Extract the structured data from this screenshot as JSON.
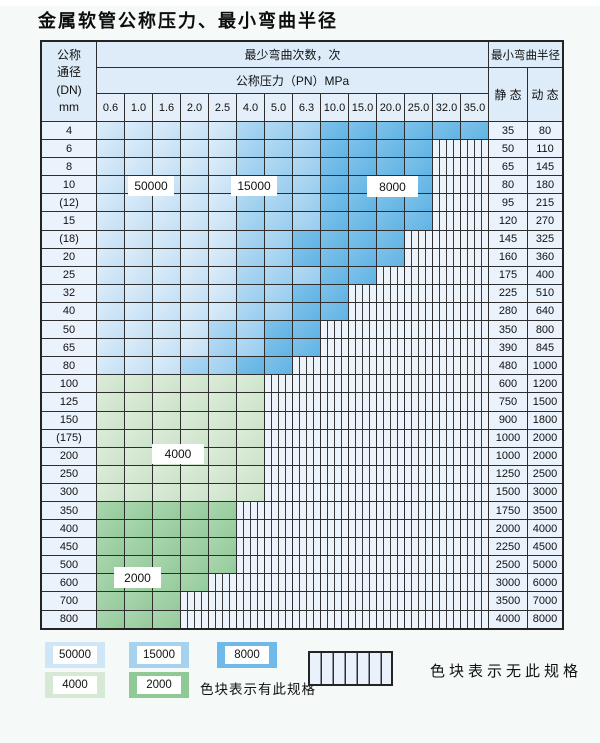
{
  "title": "金属软管公称压力、最小弯曲半径",
  "table": {
    "header": {
      "dn_lines": [
        "公称",
        "通径",
        "(DN)",
        "mm"
      ],
      "bend_cycles": "最少弯曲次数，次",
      "pressure_title": "公称压力（PN）MPa",
      "radius_title": "最小弯曲半径",
      "static_label": "静 态",
      "dynamic_label": "动 态",
      "pressures": [
        "0.6",
        "1.0",
        "1.6",
        "2.0",
        "2.5",
        "4.0",
        "5.0",
        "6.3",
        "10.0",
        "15.0",
        "20.0",
        "25.0",
        "32.0",
        "35.0"
      ]
    },
    "shade_legend_key": {
      "L": "50000 cycles",
      "M": "15000 cycles",
      "D": "8000 cycles",
      "G": "4000 cycles",
      "H": "2000 cycles",
      "S": "no specification"
    },
    "rows": [
      {
        "dn": "4",
        "static": "35",
        "dynamic": "80",
        "cells": "LLLLLMMMDDDDDD"
      },
      {
        "dn": "6",
        "static": "50",
        "dynamic": "110",
        "cells": "LLLLLMMMDDDDSS"
      },
      {
        "dn": "8",
        "static": "65",
        "dynamic": "145",
        "cells": "LLLLLMMMDDDDSS"
      },
      {
        "dn": "10",
        "static": "80",
        "dynamic": "180",
        "cells": "LLLLLMMMDDDDSS"
      },
      {
        "dn": "(12)",
        "static": "95",
        "dynamic": "215",
        "cells": "LLLLLMMMDDDDSS"
      },
      {
        "dn": "15",
        "static": "120",
        "dynamic": "270",
        "cells": "LLLLLMMMDDDDSS"
      },
      {
        "dn": "(18)",
        "static": "145",
        "dynamic": "325",
        "cells": "LLLLLMMDDDDSSS"
      },
      {
        "dn": "20",
        "static": "160",
        "dynamic": "360",
        "cells": "LLLLLMMDDDDSSS"
      },
      {
        "dn": "25",
        "static": "175",
        "dynamic": "400",
        "cells": "LLLLLMMMDDSSSS"
      },
      {
        "dn": "32",
        "static": "225",
        "dynamic": "510",
        "cells": "LLLLLMMDDSSSSS"
      },
      {
        "dn": "40",
        "static": "280",
        "dynamic": "640",
        "cells": "LLLLLMMDDSSSSS"
      },
      {
        "dn": "50",
        "static": "350",
        "dynamic": "800",
        "cells": "LLLLMMDDSSSSSS"
      },
      {
        "dn": "65",
        "static": "390",
        "dynamic": "845",
        "cells": "LLLLMMDDSSSSSS"
      },
      {
        "dn": "80",
        "static": "480",
        "dynamic": "1000",
        "cells": "LLLMMDDSSSSSSS"
      },
      {
        "dn": "100",
        "static": "600",
        "dynamic": "1200",
        "cells": "GGGGGGSSSSSSSS"
      },
      {
        "dn": "125",
        "static": "750",
        "dynamic": "1500",
        "cells": "GGGGGGSSSSSSSS"
      },
      {
        "dn": "150",
        "static": "900",
        "dynamic": "1800",
        "cells": "GGGGGGSSSSSSSS"
      },
      {
        "dn": "(175)",
        "static": "1000",
        "dynamic": "2000",
        "cells": "GGGGGGSSSSSSSS"
      },
      {
        "dn": "200",
        "static": "1000",
        "dynamic": "2000",
        "cells": "GGGGGGSSSSSSSS"
      },
      {
        "dn": "250",
        "static": "1250",
        "dynamic": "2500",
        "cells": "GGGGGGSSSSSSSS"
      },
      {
        "dn": "300",
        "static": "1500",
        "dynamic": "3000",
        "cells": "GGGGGGSSSSSSSS"
      },
      {
        "dn": "350",
        "static": "1750",
        "dynamic": "3500",
        "cells": "HHHHHSSSSSSSSS"
      },
      {
        "dn": "400",
        "static": "2000",
        "dynamic": "4000",
        "cells": "HHHHHSSSSSSSSS"
      },
      {
        "dn": "450",
        "static": "2250",
        "dynamic": "4500",
        "cells": "HHHHHSSSSSSSSS"
      },
      {
        "dn": "500",
        "static": "2500",
        "dynamic": "5000",
        "cells": "HHHHHSSSSSSSSS"
      },
      {
        "dn": "600",
        "static": "3000",
        "dynamic": "6000",
        "cells": "HHHHSSSSSSSSSS"
      },
      {
        "dn": "700",
        "static": "3500",
        "dynamic": "7000",
        "cells": "HHHSSSSSSSSSSS"
      },
      {
        "dn": "800",
        "static": "4000",
        "dynamic": "8000",
        "cells": "HHHSSSSSSSSSSS"
      }
    ]
  },
  "zone_labels": {
    "z50000": "50000",
    "z15000": "15000",
    "z8000": "8000",
    "z4000": "4000",
    "z2000": "2000"
  },
  "legend": {
    "b50000": "50000",
    "b15000": "15000",
    "b8000": "8000",
    "b4000": "4000",
    "b2000": "2000",
    "has_spec": "色块表示有此规格",
    "no_spec": "色块表示无此规格"
  },
  "colors": {
    "blue_50000": "#cfe6f6",
    "blue_15000": "#a6d2f0",
    "blue_8000": "#6fbae8",
    "green_4000": "#d6e9d4",
    "green_2000": "#8fca96",
    "striped_bg": "#edf3fa",
    "grid_line": "#2e2e2e"
  }
}
